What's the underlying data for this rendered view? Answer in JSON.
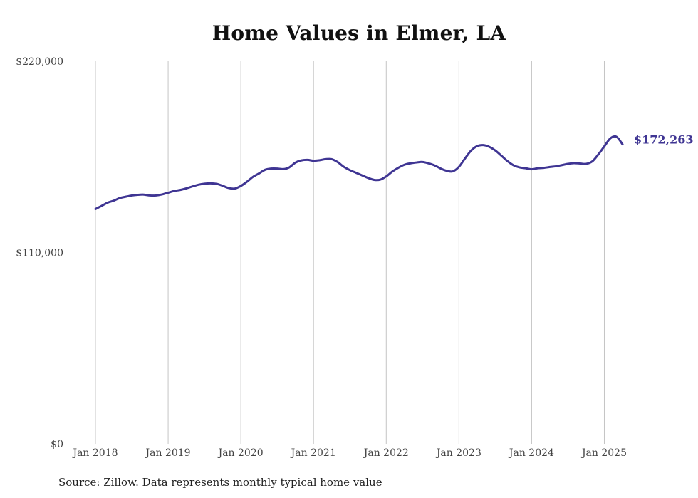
{
  "chart_data": {
    "type": "line",
    "title": "Home Values in Elmer, LA",
    "xlabel": "",
    "ylabel": "",
    "source": "Source: Zillow. Data represents monthly typical home value",
    "ylim": [
      0,
      220000
    ],
    "y_ticks": [
      {
        "value": 0,
        "label": "$0"
      },
      {
        "value": 110000,
        "label": "$110,000"
      },
      {
        "value": 220000,
        "label": "$220,000"
      }
    ],
    "xlim": [
      "2018-01",
      "2025-04"
    ],
    "x_ticks": [
      {
        "date": "2018-01",
        "label": "Jan 2018"
      },
      {
        "date": "2019-01",
        "label": "Jan 2019"
      },
      {
        "date": "2020-01",
        "label": "Jan 2020"
      },
      {
        "date": "2021-01",
        "label": "Jan 2021"
      },
      {
        "date": "2022-01",
        "label": "Jan 2022"
      },
      {
        "date": "2023-01",
        "label": "Jan 2023"
      },
      {
        "date": "2024-01",
        "label": "Jan 2024"
      },
      {
        "date": "2025-01",
        "label": "Jan 2025"
      }
    ],
    "grid": {
      "vertical": true,
      "horizontal": false
    },
    "line_color": "#3f3593",
    "end_label": "$172,263",
    "x": [
      "2018-01",
      "2018-02",
      "2018-03",
      "2018-04",
      "2018-05",
      "2018-06",
      "2018-07",
      "2018-08",
      "2018-09",
      "2018-10",
      "2018-11",
      "2018-12",
      "2019-01",
      "2019-02",
      "2019-03",
      "2019-04",
      "2019-05",
      "2019-06",
      "2019-07",
      "2019-08",
      "2019-09",
      "2019-10",
      "2019-11",
      "2019-12",
      "2020-01",
      "2020-02",
      "2020-03",
      "2020-04",
      "2020-05",
      "2020-06",
      "2020-07",
      "2020-08",
      "2020-09",
      "2020-10",
      "2020-11",
      "2020-12",
      "2021-01",
      "2021-02",
      "2021-03",
      "2021-04",
      "2021-05",
      "2021-06",
      "2021-07",
      "2021-08",
      "2021-09",
      "2021-10",
      "2021-11",
      "2021-12",
      "2022-01",
      "2022-02",
      "2022-03",
      "2022-04",
      "2022-05",
      "2022-06",
      "2022-07",
      "2022-08",
      "2022-09",
      "2022-10",
      "2022-11",
      "2022-12",
      "2023-01",
      "2023-02",
      "2023-03",
      "2023-04",
      "2023-05",
      "2023-06",
      "2023-07",
      "2023-08",
      "2023-09",
      "2023-10",
      "2023-11",
      "2023-12",
      "2024-01",
      "2024-02",
      "2024-03",
      "2024-04",
      "2024-05",
      "2024-06",
      "2024-07",
      "2024-08",
      "2024-09",
      "2024-10",
      "2024-11",
      "2024-12",
      "2025-01",
      "2025-02",
      "2025-03",
      "2025-04"
    ],
    "series": [
      {
        "values": [
          135000,
          136800,
          138700,
          139800,
          141300,
          142100,
          142800,
          143200,
          143300,
          142800,
          142800,
          143400,
          144400,
          145400,
          146000,
          146900,
          148000,
          149000,
          149600,
          149800,
          149500,
          148400,
          147100,
          146800,
          148300,
          150700,
          153500,
          155500,
          157600,
          158300,
          158300,
          158000,
          159000,
          161700,
          163000,
          163300,
          162800,
          163100,
          163700,
          163700,
          162000,
          159300,
          157400,
          155900,
          154400,
          152900,
          151800,
          151900,
          153800,
          156600,
          158800,
          160500,
          161300,
          161800,
          162100,
          161300,
          160100,
          158300,
          157000,
          156700,
          159300,
          164100,
          168600,
          171200,
          171800,
          170800,
          168700,
          165700,
          162600,
          160200,
          159000,
          158500,
          157900,
          158500,
          158700,
          159200,
          159600,
          160300,
          161000,
          161400,
          161200,
          161000,
          162400,
          166400,
          171100,
          175700,
          176600,
          172263
        ]
      }
    ]
  }
}
